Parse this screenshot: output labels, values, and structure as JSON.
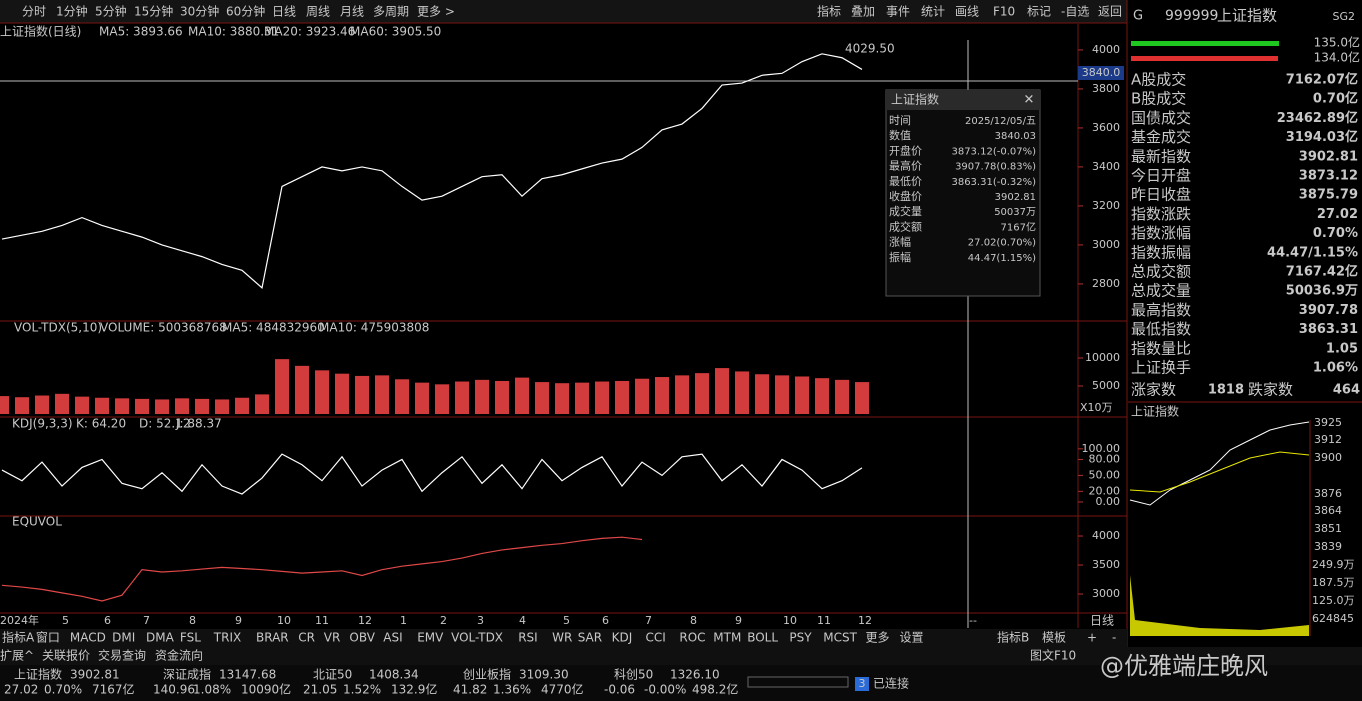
{
  "toolbar": {
    "periods": [
      "分时",
      "1分钟",
      "5分钟",
      "15分钟",
      "30分钟",
      "60分钟",
      "日线",
      "周线",
      "月线",
      "多周期",
      "更多 >"
    ],
    "actions": [
      "指标",
      "叠加",
      "事件",
      "统计",
      "画线",
      "F10",
      "标记",
      "-自选",
      "返回"
    ]
  },
  "price_chart": {
    "type": "line",
    "title": "上证指数(日线)",
    "ma": [
      "MA5: 3893.66",
      "MA10: 3880.31",
      "MA20: 3923.46",
      "MA60: 3905.50"
    ],
    "values": [
      3030,
      3050,
      3070,
      3100,
      3140,
      3100,
      3070,
      3040,
      3000,
      2970,
      2940,
      2900,
      2870,
      2780,
      3300,
      3350,
      3400,
      3380,
      3400,
      3380,
      3300,
      3230,
      3250,
      3300,
      3350,
      3360,
      3250,
      3340,
      3360,
      3390,
      3420,
      3440,
      3500,
      3590,
      3620,
      3700,
      3820,
      3830,
      3870,
      3880,
      3940,
      3980,
      3960,
      3900
    ],
    "color": "#ffffff",
    "ylim": [
      2615,
      4133
    ],
    "yticks": [
      4000,
      3800,
      3600,
      3400,
      3200,
      3000,
      2800
    ],
    "cursor_label": "3840.0",
    "peak_label": "4029.50"
  },
  "tooltip": {
    "title": "上证指数",
    "rows": [
      [
        "时间",
        "2025/12/05/五"
      ],
      [
        "数值",
        "3840.03"
      ],
      [
        "开盘价",
        "3873.12(-0.07%)"
      ],
      [
        "最高价",
        "3907.78(0.83%)"
      ],
      [
        "最低价",
        "3863.31(-0.32%)"
      ],
      [
        "收盘价",
        "3902.81"
      ],
      [
        "成交量",
        "50037万"
      ],
      [
        "成交额",
        "7167亿"
      ],
      [
        "涨幅",
        "27.02(0.70%)"
      ],
      [
        "振幅",
        "44.47(1.15%)"
      ]
    ]
  },
  "volume_chart": {
    "type": "bar",
    "header": "VOL-TDX(5,10)",
    "items": [
      "VOLUME: 500368768",
      "MA5: 484832960",
      "MA10: 475903808"
    ],
    "values": [
      3200,
      3000,
      3300,
      3600,
      3100,
      2900,
      2800,
      2700,
      2600,
      2800,
      2700,
      2600,
      2900,
      3500,
      9800,
      8600,
      7800,
      7200,
      6800,
      6900,
      6200,
      5600,
      5300,
      5800,
      6100,
      5900,
      6500,
      5700,
      5500,
      5600,
      5800,
      5900,
      6300,
      6600,
      6900,
      7300,
      8200,
      7600,
      7100,
      6900,
      6700,
      6400,
      6100,
      5700
    ],
    "color": "#d23c3c",
    "ylim": [
      0,
      16430
    ],
    "yticks": [
      10000,
      5000
    ],
    "unit": "X10万"
  },
  "kdj_chart": {
    "type": "line",
    "header": "KDJ(9,3,3)",
    "items": [
      "K: 64.20",
      "D: 52.12",
      "J: 88.37"
    ],
    "values": [
      60,
      40,
      75,
      30,
      65,
      80,
      35,
      25,
      55,
      20,
      70,
      30,
      15,
      45,
      90,
      70,
      40,
      85,
      30,
      60,
      80,
      20,
      55,
      85,
      35,
      70,
      25,
      80,
      40,
      65,
      85,
      30,
      75,
      50,
      85,
      90,
      40,
      70,
      30,
      80,
      60,
      25,
      40,
      64.2
    ],
    "color": "#ffffff",
    "ylim": [
      -24.5,
      158
    ],
    "yticks": [
      {
        "value": 100,
        "label": "100.00"
      },
      {
        "value": 80,
        "label": "80.00"
      },
      {
        "value": 50,
        "label": "50.00"
      },
      {
        "value": 20,
        "label": "20.00"
      },
      {
        "value": 0,
        "label": "0.00"
      }
    ]
  },
  "equvol_chart": {
    "type": "line",
    "header": "EQUVOL",
    "values": [
      3150,
      3120,
      3080,
      3020,
      2960,
      2880,
      2980,
      3420,
      3380,
      3400,
      3430,
      3460,
      3440,
      3420,
      3390,
      3360,
      3380,
      3400,
      3320,
      3420,
      3480,
      3520,
      3560,
      3620,
      3700,
      3760,
      3800,
      3840,
      3870,
      3920,
      3960,
      3980,
      3940
    ],
    "color": "#e04848",
    "ylim": [
      2690,
      4328
    ],
    "yticks": [
      4000,
      3500,
      3000
    ]
  },
  "x_axis": {
    "labels": [
      "2024年",
      "5",
      "6",
      "7",
      "8",
      "9",
      "10",
      "11",
      "12",
      "1",
      "2",
      "3",
      "4",
      "5",
      "6",
      "7",
      "8",
      "9",
      "10",
      "11",
      "12"
    ],
    "period": "日线",
    "cursor": "--"
  },
  "indicator_tabs": [
    "指标A",
    "窗口",
    "MACD",
    "DMI",
    "DMA",
    "FSL",
    "TRIX",
    "BRAR",
    "CR",
    "VR",
    "OBV",
    "ASI",
    "EMV",
    "VOL-TDX",
    "RSI",
    "WR",
    "SAR",
    "KDJ",
    "CCI",
    "ROC",
    "MTM",
    "BOLL",
    "PSY",
    "MCST",
    "更多",
    "设置"
  ],
  "indicator_right": [
    "指标B",
    "模板",
    "+",
    "-"
  ],
  "bottom_tabs": [
    "扩展^",
    "关联报价",
    "交易查询",
    "资金流向"
  ],
  "right_status": "图文F10",
  "quotes": [
    {
      "name": "上证指数",
      "price": "3902.81",
      "change": "27.02",
      "pct": "0.70%",
      "amount": "7167亿"
    },
    {
      "name": "深证成指",
      "price": "13147.68",
      "change": "140.96",
      "pct": "1.08%",
      "amount": "10090亿"
    },
    {
      "name": "北证50",
      "price": "1408.34",
      "change": "21.05",
      "pct": "1.52%",
      "amount": "132.9亿"
    },
    {
      "name": "创业板指",
      "price": "3109.30",
      "change": "41.82",
      "pct": "1.36%",
      "amount": "4770亿"
    },
    {
      "name": "科创50",
      "price": "1326.10",
      "change": "-0.06",
      "pct": "-0.00%",
      "amount": "498.2亿"
    }
  ],
  "connection": {
    "count": "3",
    "text": "已连接"
  },
  "watermark": "@优雅端庄晚风",
  "side_panel": {
    "logo": "G",
    "code": "999999",
    "name": "上证指数",
    "tag": "SG2",
    "bars": [
      "135.0亿",
      "134.0亿"
    ],
    "rows": [
      [
        "A股成交",
        "7162.07亿"
      ],
      [
        "B股成交",
        "0.70亿"
      ],
      [
        "国债成交",
        "23462.89亿"
      ],
      [
        "基金成交",
        "3194.03亿"
      ],
      [
        "最新指数",
        "3902.81"
      ],
      [
        "今日开盘",
        "3873.12"
      ],
      [
        "昨日收盘",
        "3875.79"
      ],
      [
        "指数涨跌",
        "27.02"
      ],
      [
        "指数涨幅",
        "0.70%"
      ],
      [
        "指数振幅",
        "44.47/1.15%"
      ],
      [
        "总成交额",
        "7167.42亿"
      ],
      [
        "总成交量",
        "50036.9万"
      ],
      [
        "最高指数",
        "3907.78"
      ],
      [
        "最低指数",
        "3863.31"
      ],
      [
        "指数量比",
        "1.05"
      ],
      [
        "上证换手",
        "1.06%"
      ]
    ],
    "rise_label": "涨家数",
    "rise": "1818",
    "fall_label": "跌家数",
    "fall": "464",
    "mini_title": "上证指数",
    "mini_ticks": [
      "3925",
      "3912",
      "3900",
      "3876",
      "3864",
      "3851",
      "3839"
    ],
    "mini_vol_ticks": [
      "249.9万",
      "187.5万",
      "125.0万",
      "624845"
    ]
  }
}
